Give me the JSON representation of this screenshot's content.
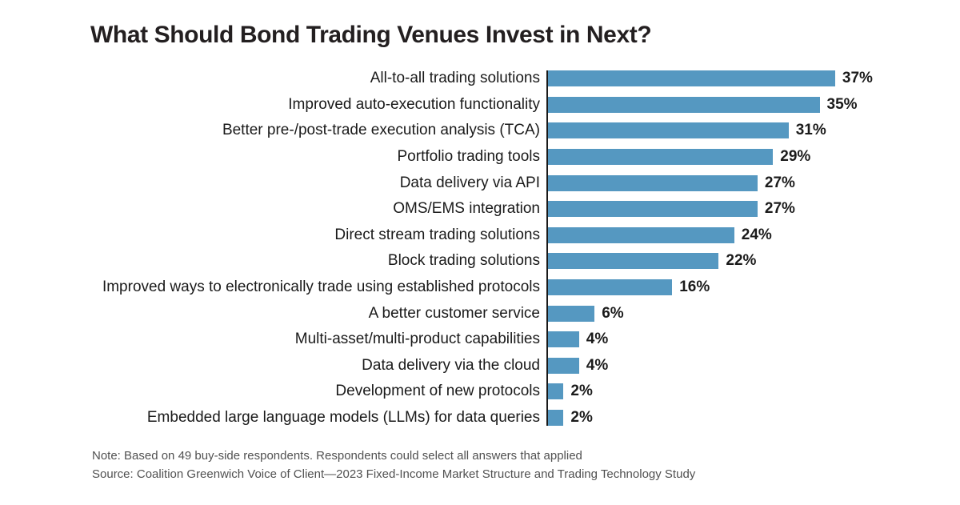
{
  "title": "What Should Bond Trading Venues Invest in Next?",
  "chart_data": {
    "type": "bar",
    "orientation": "horizontal",
    "title": "What Should Bond Trading Venues Invest in Next?",
    "xlabel": "",
    "ylabel": "",
    "xlim": [
      0,
      38
    ],
    "grid": false,
    "legend": "none",
    "value_label_position": "end-of-bar",
    "value_suffix": "%",
    "bar_color": "#5598c1",
    "categories": [
      "All-to-all trading solutions",
      "Improved auto-execution functionality",
      "Better pre-/post-trade execution analysis (TCA)",
      "Portfolio trading tools",
      "Data delivery via API",
      "OMS/EMS integration",
      "Direct stream trading solutions",
      "Block trading solutions",
      "Improved ways to electronically trade using established protocols",
      "A better customer service",
      "Multi-asset/multi-product capabilities",
      "Data delivery via the cloud",
      "Development of new protocols",
      "Embedded large language models (LLMs) for data queries"
    ],
    "values": [
      37,
      35,
      31,
      29,
      27,
      27,
      24,
      22,
      16,
      6,
      4,
      4,
      2,
      2
    ]
  },
  "footer": {
    "note": "Note: Based on 49 buy-side respondents. Respondents could select all answers that applied",
    "source": "Source: Coalition Greenwich Voice of Client—2023 Fixed-Income Market Structure and Trading Technology Study"
  },
  "colors": {
    "bar": "#5598c1",
    "axis_line": "#1a1a1a",
    "title_text": "#231f20",
    "category_text": "#1a1a1a",
    "value_text": "#1b1b1b",
    "footer_text": "#515151",
    "background": "#ffffff"
  }
}
